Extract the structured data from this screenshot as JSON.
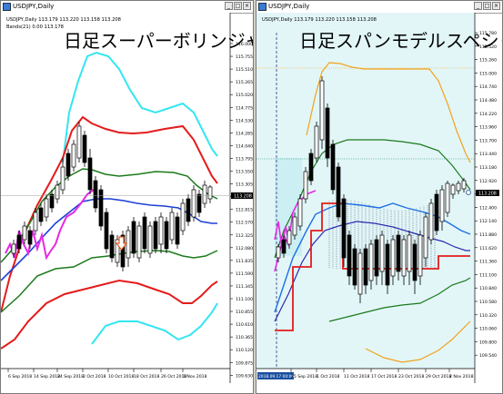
{
  "left": {
    "window_title": "USDJPY,Daily",
    "header_line": "USDJPY,Daily  113.179 113.220 113.158 113.208",
    "indicator_line": "Bands(21) 0.00 113.178",
    "overlay_title": "日足スーパーボリンジャー",
    "price_labels": [
      "116.000",
      "115.755",
      "115.510",
      "115.265",
      "115.020",
      "114.775",
      "114.530",
      "114.285",
      "114.040",
      "113.795",
      "113.550",
      "113.305",
      "113.060",
      "112.815",
      "112.570",
      "112.325",
      "112.080",
      "111.835",
      "111.590",
      "111.345",
      "111.100",
      "110.855",
      "110.610",
      "110.365",
      "110.120",
      "109.875",
      "109.630"
    ],
    "current_price": "113.208",
    "date_labels": [
      "6 Sep 2018",
      "14 Sep 2018",
      "24 Sep 2018",
      "2 Oct 2018",
      "10 Oct 2018",
      "18 Oct 2018",
      "26 Oct 2018",
      "1 Nov 2018"
    ]
  },
  "right": {
    "window_title": "USDJPY,Daily",
    "header_line": "USDJPY,Daily  113.179 113.220 113.158 113.208",
    "overlay_title": "日足スパンモデルスペシャル",
    "price_labels": [
      "115.780",
      "115.520",
      "115.260",
      "115.000",
      "114.740",
      "114.480",
      "114.220",
      "113.960",
      "113.700",
      "113.440",
      "113.180",
      "112.920",
      "112.660",
      "112.400",
      "112.140",
      "111.880",
      "111.620",
      "111.360",
      "111.100",
      "110.840",
      "110.580",
      "110.320",
      "110.060",
      "109.800",
      "109.540"
    ],
    "current_price": "113.208",
    "date_labels": [
      "2018.09.17 00:00",
      "25 Sep 2018",
      "1 Oct 2018",
      "11 Oct 2018",
      "17 Oct 2018",
      "23 Oct 2018",
      "29 Oct 2018",
      "2 Nov 2018"
    ]
  },
  "colors": {
    "band3": "#33e6f2",
    "band2": "#e51b1b",
    "band1": "#1a7a1a",
    "mid": "#1e3fd6",
    "lagging": "#e52ae5",
    "span_cloud_bg": "#ddf2f6",
    "span_red": "#e51b1b",
    "span_blue": "#1e6fe5",
    "orange": "#f2a21a"
  }
}
